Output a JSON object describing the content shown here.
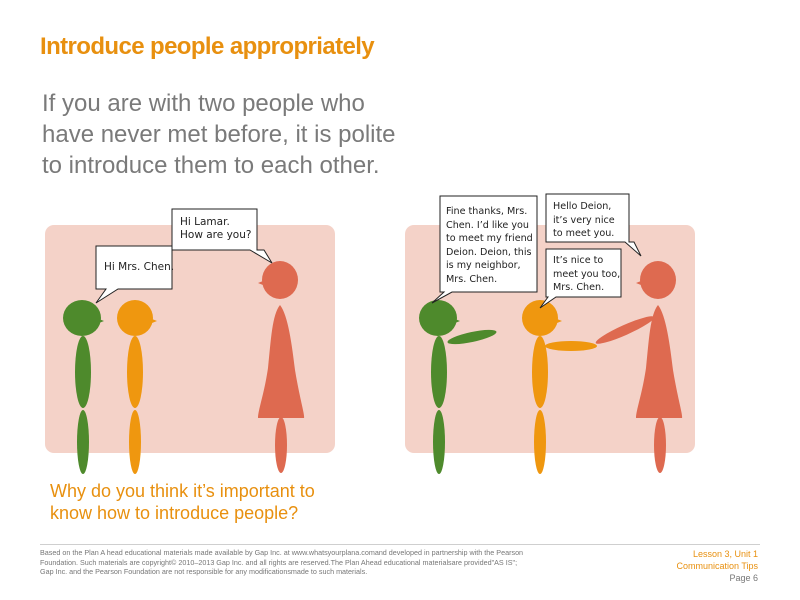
{
  "slide": {
    "title": "Introduce people appropriately",
    "intro_lines": [
      "If you are with two people who",
      "have never met before, it is polite",
      "to introduce them to each other."
    ],
    "question_lines": [
      "Why do you think  it’s important to",
      "know how to introduce people?"
    ]
  },
  "scene_1": {
    "bubble_left": [
      "Hi Mrs. Chen."
    ],
    "bubble_right": [
      "Hi Lamar.",
      "How are you?"
    ]
  },
  "scene_2": {
    "bubble_left": [
      "Fine thanks, Mrs.",
      "Chen. I’d like you",
      "to meet my friend",
      "Deion. Deion, this",
      "is my neighbor,",
      "Mrs. Chen."
    ],
    "bubble_top_right": [
      "Hello Deion,",
      "it’s very nice",
      "to meet you."
    ],
    "bubble_mid_right": [
      "It’s nice to",
      "meet you too,",
      "Mrs. Chen."
    ]
  },
  "footer": {
    "credit_lines": [
      "Based on the Plan A head educational materials made available by Gap Inc. at www.whatsyourplana.comand developed in partnership with the Pearson",
      "Foundation.  Such materials are copyright© 2010–2013 Gap Inc. and all rights are reserved.The Plan Ahead educational materialsare provided\"AS IS\";",
      "Gap Inc. and the Pearson Foundation are not responsible for any modificationsmade to such materials."
    ],
    "lesson": "Lesson 3,  Unit 1",
    "section": "Communication  Tips",
    "page": "Page 6"
  },
  "colors": {
    "accent": "#e8900f",
    "panel": "#f4d2c8",
    "green": "#4e8a2c",
    "orange": "#ef970f",
    "red": "#de6a50"
  }
}
